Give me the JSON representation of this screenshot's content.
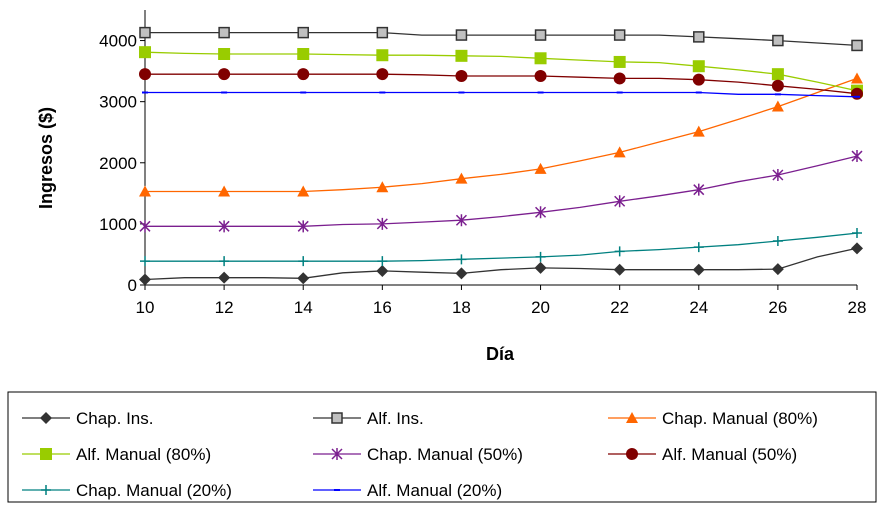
{
  "chart_data": {
    "type": "line",
    "xlabel": "Día",
    "ylabel": "Ingresos ($)",
    "xlim": [
      10,
      28
    ],
    "ylim": [
      0,
      4500
    ],
    "x_ticks": [
      10,
      12,
      14,
      16,
      18,
      20,
      22,
      24,
      26,
      28
    ],
    "y_ticks": [
      0,
      1000,
      2000,
      3000,
      4000
    ],
    "grid": false,
    "legend_position": "bottom",
    "series": [
      {
        "name": "Chap. Ins.",
        "color": "#333333",
        "marker": "diamond",
        "x": [
          10,
          11,
          12,
          13,
          14,
          15,
          16,
          17,
          18,
          19,
          20,
          21,
          22,
          23,
          24,
          25,
          26,
          27,
          28
        ],
        "y": [
          90,
          120,
          120,
          120,
          110,
          200,
          230,
          210,
          190,
          250,
          280,
          270,
          250,
          250,
          250,
          250,
          260,
          460,
          600
        ],
        "marker_x": [
          10,
          12,
          14,
          16,
          18,
          20,
          22,
          24,
          26,
          28
        ]
      },
      {
        "name": "Alf. Ins.",
        "color": "#333333",
        "marker": "square-open",
        "x": [
          10,
          11,
          12,
          13,
          14,
          15,
          16,
          17,
          18,
          19,
          20,
          21,
          22,
          23,
          24,
          25,
          26,
          27,
          28
        ],
        "y": [
          4130,
          4130,
          4130,
          4130,
          4130,
          4130,
          4130,
          4090,
          4090,
          4090,
          4090,
          4090,
          4090,
          4090,
          4060,
          4030,
          4000,
          3960,
          3920
        ],
        "marker_x": [
          10,
          12,
          14,
          16,
          18,
          20,
          22,
          24,
          26,
          28
        ]
      },
      {
        "name": "Chap. Manual (80%)",
        "color": "#ff6600",
        "marker": "triangle",
        "x": [
          10,
          11,
          12,
          13,
          14,
          15,
          16,
          17,
          18,
          19,
          20,
          21,
          22,
          23,
          24,
          25,
          26,
          27,
          28
        ],
        "y": [
          1530,
          1530,
          1530,
          1530,
          1530,
          1560,
          1600,
          1660,
          1740,
          1810,
          1900,
          2030,
          2170,
          2340,
          2510,
          2710,
          2920,
          3150,
          3380
        ],
        "marker_x": [
          10,
          12,
          14,
          16,
          18,
          20,
          22,
          24,
          26,
          28
        ]
      },
      {
        "name": "Alf. Manual (80%)",
        "color": "#99cc00",
        "marker": "square",
        "x": [
          10,
          11,
          12,
          13,
          14,
          15,
          16,
          17,
          18,
          19,
          20,
          21,
          22,
          23,
          24,
          25,
          26,
          27,
          28
        ],
        "y": [
          3810,
          3790,
          3780,
          3780,
          3780,
          3770,
          3760,
          3760,
          3750,
          3740,
          3710,
          3680,
          3650,
          3640,
          3580,
          3520,
          3450,
          3320,
          3180
        ],
        "marker_x": [
          10,
          12,
          14,
          16,
          18,
          20,
          22,
          24,
          26,
          28
        ]
      },
      {
        "name": "Chap. Manual (50%)",
        "color": "#7b1f8f",
        "marker": "asterisk",
        "x": [
          10,
          11,
          12,
          13,
          14,
          15,
          16,
          17,
          18,
          19,
          20,
          21,
          22,
          23,
          24,
          25,
          26,
          27,
          28
        ],
        "y": [
          960,
          960,
          960,
          960,
          960,
          990,
          1000,
          1030,
          1060,
          1120,
          1190,
          1270,
          1370,
          1460,
          1560,
          1690,
          1800,
          1950,
          2110
        ],
        "marker_x": [
          10,
          12,
          14,
          16,
          18,
          20,
          22,
          24,
          26,
          28
        ]
      },
      {
        "name": "Alf. Manual (50%)",
        "color": "#800000",
        "marker": "circle",
        "x": [
          10,
          11,
          12,
          13,
          14,
          15,
          16,
          17,
          18,
          19,
          20,
          21,
          22,
          23,
          24,
          25,
          26,
          27,
          28
        ],
        "y": [
          3450,
          3450,
          3450,
          3450,
          3450,
          3450,
          3450,
          3440,
          3420,
          3420,
          3420,
          3400,
          3380,
          3380,
          3360,
          3320,
          3260,
          3200,
          3130
        ],
        "marker_x": [
          10,
          12,
          14,
          16,
          18,
          20,
          22,
          24,
          26,
          28
        ]
      },
      {
        "name": "Chap. Manual (20%)",
        "color": "#008080",
        "marker": "plus",
        "x": [
          10,
          11,
          12,
          13,
          14,
          15,
          16,
          17,
          18,
          19,
          20,
          21,
          22,
          23,
          24,
          25,
          26,
          27,
          28
        ],
        "y": [
          390,
          390,
          390,
          390,
          390,
          390,
          390,
          400,
          420,
          440,
          460,
          490,
          550,
          580,
          620,
          660,
          720,
          780,
          850
        ],
        "marker_x": [
          10,
          12,
          14,
          16,
          18,
          20,
          22,
          24,
          26,
          28
        ]
      },
      {
        "name": "Alf. Manual (20%)",
        "color": "#0000ff",
        "marker": "dash",
        "x": [
          10,
          11,
          12,
          13,
          14,
          15,
          16,
          17,
          18,
          19,
          20,
          21,
          22,
          23,
          24,
          25,
          26,
          27,
          28
        ],
        "y": [
          3150,
          3150,
          3150,
          3150,
          3150,
          3150,
          3150,
          3150,
          3150,
          3150,
          3150,
          3150,
          3150,
          3150,
          3150,
          3120,
          3120,
          3100,
          3080
        ],
        "marker_x": [
          10,
          12,
          14,
          16,
          18,
          20,
          22,
          24,
          26,
          28
        ]
      }
    ]
  }
}
